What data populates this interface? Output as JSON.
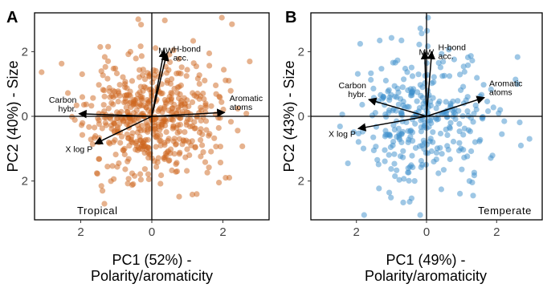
{
  "chart_data": [
    {
      "type": "scatter",
      "panel": "A",
      "xlabel_line1": "PC1 (52%) -",
      "xlabel_line2": "Polarity/aromaticity",
      "ylabel": "PC2 (40%) - Size",
      "region": "Tropical",
      "color": "#cd661d",
      "xlim": [
        -3.3,
        3.3
      ],
      "ylim": [
        -3.2,
        3.2
      ],
      "x_ticks": [
        {
          "value": -2,
          "label": "2"
        },
        {
          "value": 0,
          "label": "0"
        },
        {
          "value": 2,
          "label": "2"
        }
      ],
      "y_ticks": [
        {
          "value": 2,
          "label": "2"
        },
        {
          "value": 0,
          "label": "0"
        },
        {
          "value": -2,
          "label": "2"
        }
      ],
      "loadings": [
        {
          "label": [
            "MW"
          ],
          "x": 0.35,
          "y": 2.05
        },
        {
          "label": [
            "H-bond",
            "acc."
          ],
          "x": 0.42,
          "y": 1.95
        },
        {
          "label": [
            "Aromatic",
            "atoms"
          ],
          "x": 2.05,
          "y": 0.12
        },
        {
          "label": [
            "Carbon",
            "hybr."
          ],
          "x": -2.05,
          "y": 0.08
        },
        {
          "label": [
            "X log P"
          ],
          "x": -1.6,
          "y": -0.85
        }
      ],
      "points": {
        "n": 560,
        "sd_x": 0.95,
        "sd_y": 0.95,
        "seed": 11
      }
    },
    {
      "type": "scatter",
      "panel": "B",
      "xlabel_line1": "PC1 (49%) -",
      "xlabel_line2": "Polarity/aromaticity",
      "ylabel": "PC2 (43%) - Size",
      "region": "Temperate",
      "color": "#3d8fcc",
      "xlim": [
        -3.3,
        3.3
      ],
      "ylim": [
        -3.2,
        3.2
      ],
      "x_ticks": [
        {
          "value": -2,
          "label": "2"
        },
        {
          "value": 0,
          "label": "0"
        },
        {
          "value": 2,
          "label": "2"
        }
      ],
      "y_ticks": [
        {
          "value": 2,
          "label": "2"
        },
        {
          "value": 0,
          "label": "0"
        },
        {
          "value": -2,
          "label": "2"
        }
      ],
      "loadings": [
        {
          "label": [
            "MW"
          ],
          "x": -0.05,
          "y": 2.0
        },
        {
          "label": [
            "H-bond",
            "acc."
          ],
          "x": 0.15,
          "y": 2.0
        },
        {
          "label": [
            "Aromatic",
            "atoms"
          ],
          "x": 1.65,
          "y": 0.58
        },
        {
          "label": [
            "Carbon",
            "hybr."
          ],
          "x": -1.65,
          "y": 0.52
        },
        {
          "label": [
            "X log P"
          ],
          "x": -1.95,
          "y": -0.38
        }
      ],
      "points": {
        "n": 340,
        "sd_x": 1.0,
        "sd_y": 1.05,
        "seed": 29
      }
    }
  ]
}
